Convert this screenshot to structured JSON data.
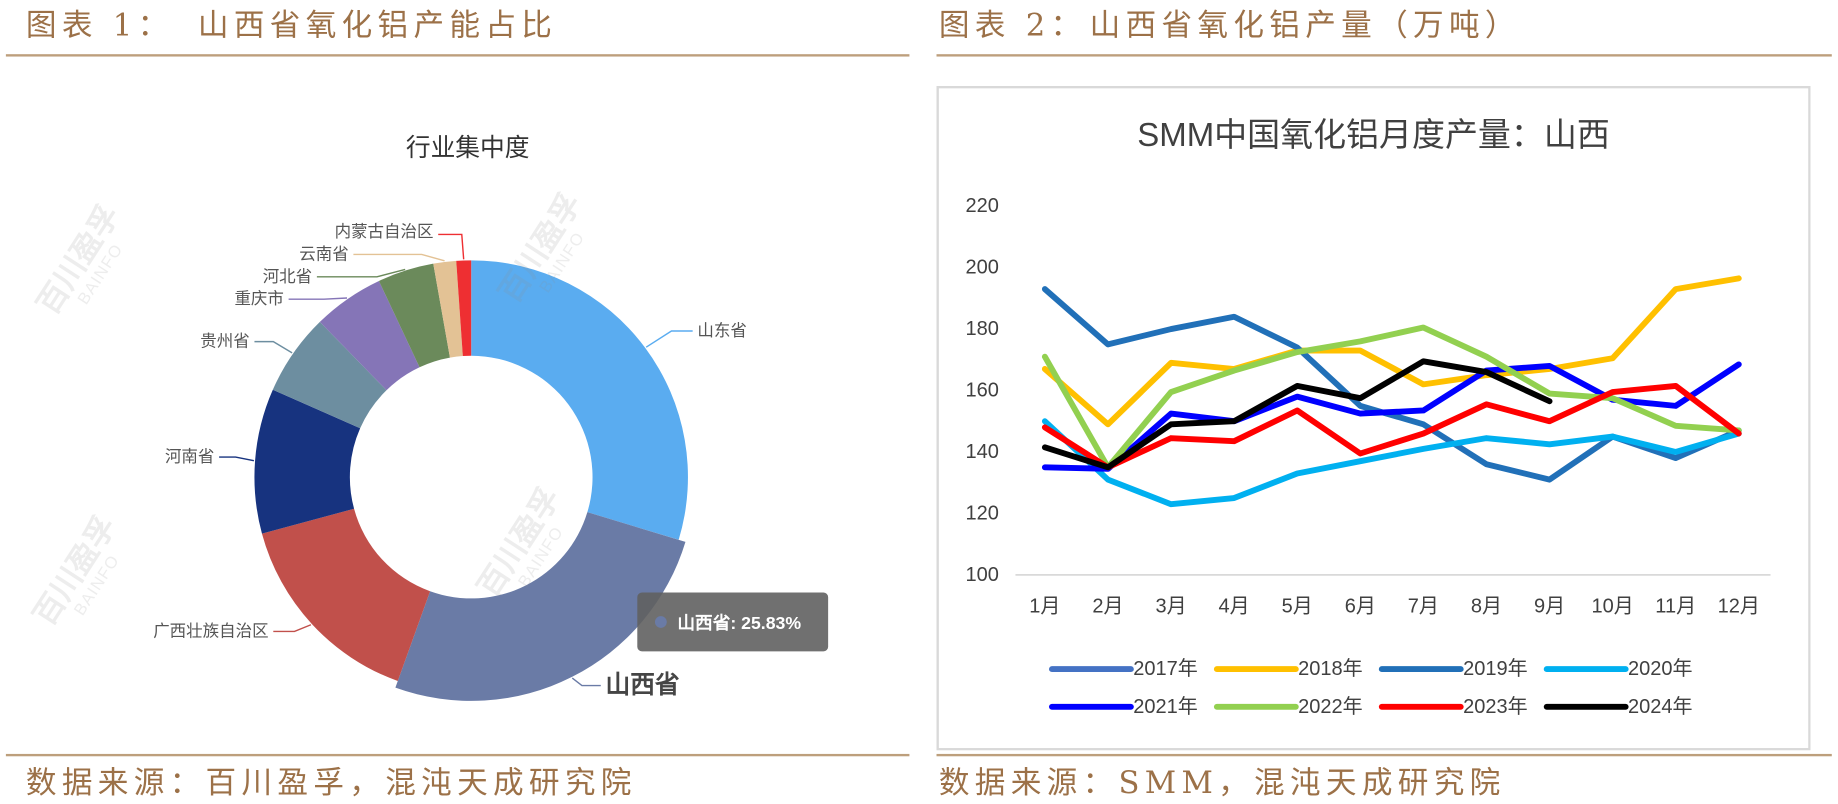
{
  "panels": {
    "left": {
      "figure_label": "图表 1：",
      "figure_title": "山西省氧化铝产能占比",
      "source": "数据来源：百川盈孚，混沌天成研究院"
    },
    "right": {
      "figure_label": "图表 2：",
      "figure_title": "山西省氧化铝产量（万吨）",
      "source": "数据来源：SMM，混沌天成研究院"
    }
  },
  "colors": {
    "header_text": "#9c7148",
    "rule": "#bd9f7c"
  },
  "watermark": {
    "cn": "百川盈孚",
    "en": "BAINFO"
  },
  "chart_data": [
    {
      "type": "pie",
      "donut": true,
      "title": "行业集中度",
      "highlighted": "山西省",
      "tooltip": "山西省: 25.83%",
      "slices": [
        {
          "label": "山东省",
          "value": 29.67,
          "color": "#5aacf0"
        },
        {
          "label": "山西省",
          "value": 25.83,
          "color": "#6a7ba6"
        },
        {
          "label": "广西壮族自治区",
          "value": 15.3,
          "color": "#c1504b"
        },
        {
          "label": "河南省",
          "value": 10.8,
          "color": "#17337f"
        },
        {
          "label": "贵州省",
          "value": 6.1,
          "color": "#6d8ea0"
        },
        {
          "label": "重庆市",
          "value": 5.3,
          "color": "#8575b7"
        },
        {
          "label": "河北省",
          "value": 4.2,
          "color": "#6b8a5b"
        },
        {
          "label": "云南省",
          "value": 1.7,
          "color": "#e3c295"
        },
        {
          "label": "内蒙古自治区",
          "value": 1.1,
          "color": "#ee2f32"
        }
      ]
    },
    {
      "type": "line",
      "title": "SMM中国氧化铝月度产量：山西",
      "categories": [
        "1月",
        "2月",
        "3月",
        "4月",
        "5月",
        "6月",
        "7月",
        "8月",
        "9月",
        "10月",
        "11月",
        "12月"
      ],
      "ylim": [
        100,
        220
      ],
      "yticks": [
        100,
        120,
        140,
        160,
        180,
        200,
        220
      ],
      "grid": false,
      "legend_position": "bottom",
      "series": [
        {
          "name": "2017年",
          "color": "#4472c4",
          "values": [
            null,
            null,
            null,
            null,
            null,
            null,
            null,
            null,
            null,
            null,
            null,
            null
          ]
        },
        {
          "name": "2018年",
          "color": "#ffc000",
          "values": [
            167,
            149,
            169,
            167,
            173,
            173,
            162,
            165,
            167,
            170.5,
            193,
            196.5
          ]
        },
        {
          "name": "2019年",
          "color": "#2170b8",
          "values": [
            193,
            175,
            180,
            184,
            174,
            155,
            149,
            136,
            131,
            145,
            138,
            147
          ]
        },
        {
          "name": "2020年",
          "color": "#00b0f0",
          "values": [
            150,
            131,
            123,
            125,
            133,
            137,
            141,
            144.5,
            142.5,
            145,
            140,
            146
          ]
        },
        {
          "name": "2021年",
          "color": "#0000ff",
          "values": [
            135,
            134.5,
            152.5,
            150,
            158,
            152.5,
            153.5,
            166.5,
            168,
            157,
            155,
            168.5
          ]
        },
        {
          "name": "2022年",
          "color": "#92d050",
          "values": [
            171,
            135,
            159.5,
            166.5,
            172.5,
            176,
            180.5,
            171,
            159,
            157.5,
            148.5,
            147
          ]
        },
        {
          "name": "2023年",
          "color": "#ff0000",
          "values": [
            148,
            135,
            144.5,
            143.5,
            153.5,
            139.5,
            146,
            155.5,
            150,
            159.5,
            161.5,
            146
          ]
        },
        {
          "name": "2024年",
          "color": "#000000",
          "values": [
            141.5,
            135,
            149,
            150,
            161.5,
            157.5,
            169.5,
            166,
            156.5,
            null,
            null,
            null
          ]
        }
      ]
    }
  ]
}
